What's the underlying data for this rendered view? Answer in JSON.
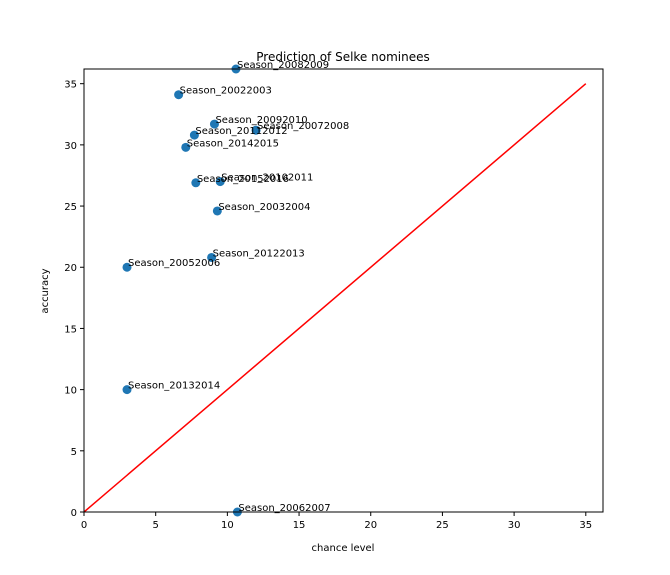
{
  "chart_data": {
    "type": "scatter",
    "title": "Prediction of Selke nominees",
    "xlabel": "chance level",
    "ylabel": "accuracy",
    "xlim": [
      0,
      36.2
    ],
    "ylim": [
      0,
      36.2
    ],
    "xticks": [
      0,
      5,
      10,
      15,
      20,
      25,
      30,
      35
    ],
    "yticks": [
      0,
      5,
      10,
      15,
      20,
      25,
      30,
      35
    ],
    "grid": false,
    "point_color": "#1f77b4",
    "line_color": "#ff0000",
    "reference_line": {
      "x": [
        0,
        35
      ],
      "y": [
        0,
        35
      ]
    },
    "points": [
      {
        "label": "Season_20082009",
        "x": 10.6,
        "y": 36.2
      },
      {
        "label": "Season_20022003",
        "x": 6.6,
        "y": 34.1
      },
      {
        "label": "Season_20092010",
        "x": 9.1,
        "y": 31.7
      },
      {
        "label": "Season_20072008",
        "x": 12.0,
        "y": 31.2
      },
      {
        "label": "Season_20112012",
        "x": 7.7,
        "y": 30.8
      },
      {
        "label": "Season_20142015",
        "x": 7.1,
        "y": 29.8
      },
      {
        "label": "Season_20102011",
        "x": 9.5,
        "y": 27.0
      },
      {
        "label": "Season_20152016",
        "x": 7.8,
        "y": 26.9
      },
      {
        "label": "Season_20032004",
        "x": 9.3,
        "y": 24.6
      },
      {
        "label": "Season_20122013",
        "x": 8.9,
        "y": 20.8
      },
      {
        "label": "Season_20052006",
        "x": 3.0,
        "y": 20.0
      },
      {
        "label": "Season_20132014",
        "x": 3.0,
        "y": 10.0
      },
      {
        "label": "Season_20062007",
        "x": 10.7,
        "y": 0.0
      }
    ]
  }
}
